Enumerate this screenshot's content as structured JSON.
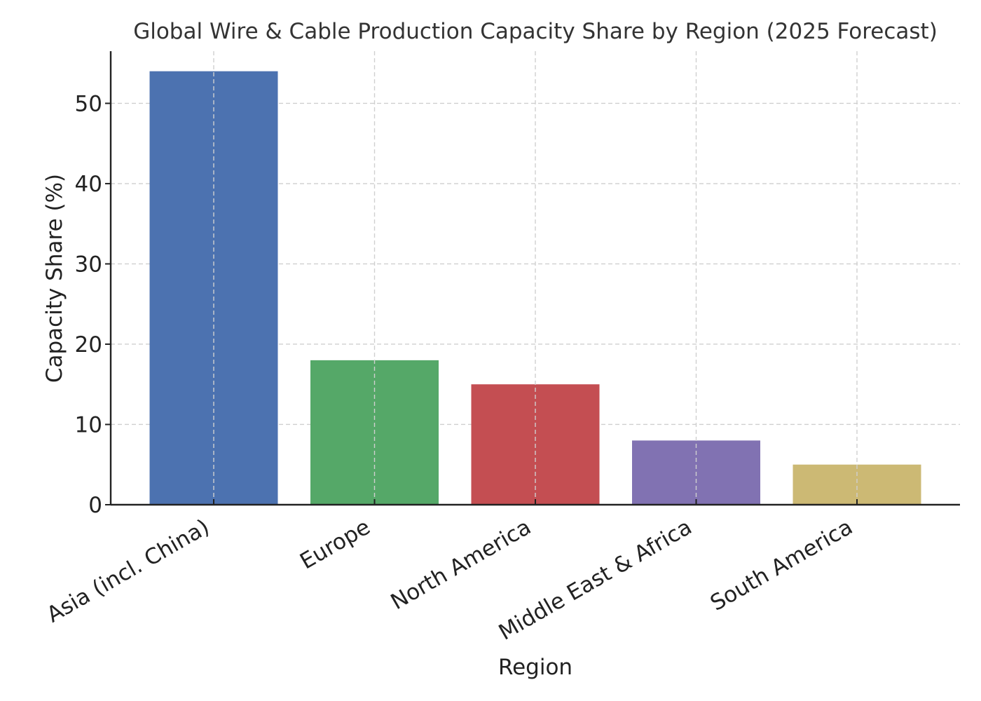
{
  "chart_data": {
    "type": "bar",
    "title": "Global Wire & Cable Production Capacity Share by Region (2025 Forecast)",
    "xlabel": "Region",
    "ylabel": "Capacity Share (%)",
    "categories": [
      "Asia (incl. China)",
      "Europe",
      "North America",
      "Middle East & Africa",
      "South America"
    ],
    "values": [
      54,
      18,
      15,
      8,
      5
    ],
    "colors": [
      "#4c72b0",
      "#55a868",
      "#c44e52",
      "#8172b2",
      "#ccb974"
    ],
    "ylim": [
      0,
      56.5
    ],
    "yticks": [
      0,
      10,
      20,
      30,
      40,
      50
    ],
    "grid": true
  }
}
